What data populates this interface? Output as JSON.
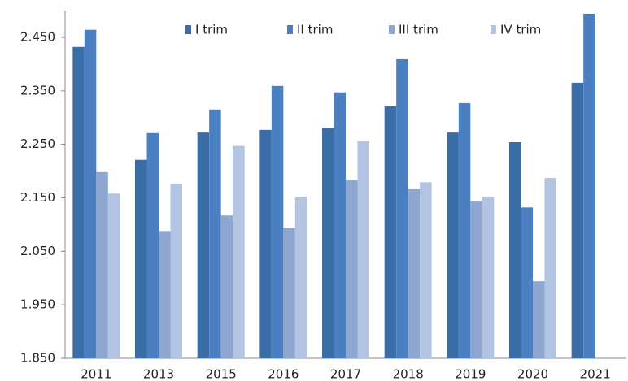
{
  "chart_data": {
    "type": "bar",
    "categories": [
      "2011",
      "2013",
      "2015",
      "2016",
      "2017",
      "2018",
      "2019",
      "2020",
      "2021"
    ],
    "series": [
      {
        "name": "I trim",
        "color": "#3b6ea6",
        "values": [
          2432,
          2221,
          2272,
          2277,
          2280,
          2321,
          2272,
          2254,
          2365
        ]
      },
      {
        "name": "II trim",
        "color": "#4a80c2",
        "values": [
          2464,
          2271,
          2315,
          2359,
          2347,
          2409,
          2327,
          2132,
          2494
        ]
      },
      {
        "name": "III trim",
        "color": "#8ea7d0",
        "values": [
          2198,
          2088,
          2117,
          2093,
          2184,
          2166,
          2143,
          1994,
          null
        ]
      },
      {
        "name": "IV trim",
        "color": "#b2c4e1",
        "values": [
          2158,
          2176,
          2247,
          2152,
          2257,
          2179,
          2152,
          2187,
          null
        ]
      }
    ],
    "ylim": [
      1850,
      2500
    ],
    "yticks": [
      {
        "value": 1850,
        "label": "1.850"
      },
      {
        "value": 1950,
        "label": "1.950"
      },
      {
        "value": 2050,
        "label": "2.050"
      },
      {
        "value": 2150,
        "label": "2.150"
      },
      {
        "value": 2250,
        "label": "2.250"
      },
      {
        "value": 2350,
        "label": "2.350"
      },
      {
        "value": 2450,
        "label": "2.450"
      }
    ],
    "grid": false,
    "legend": "top"
  }
}
